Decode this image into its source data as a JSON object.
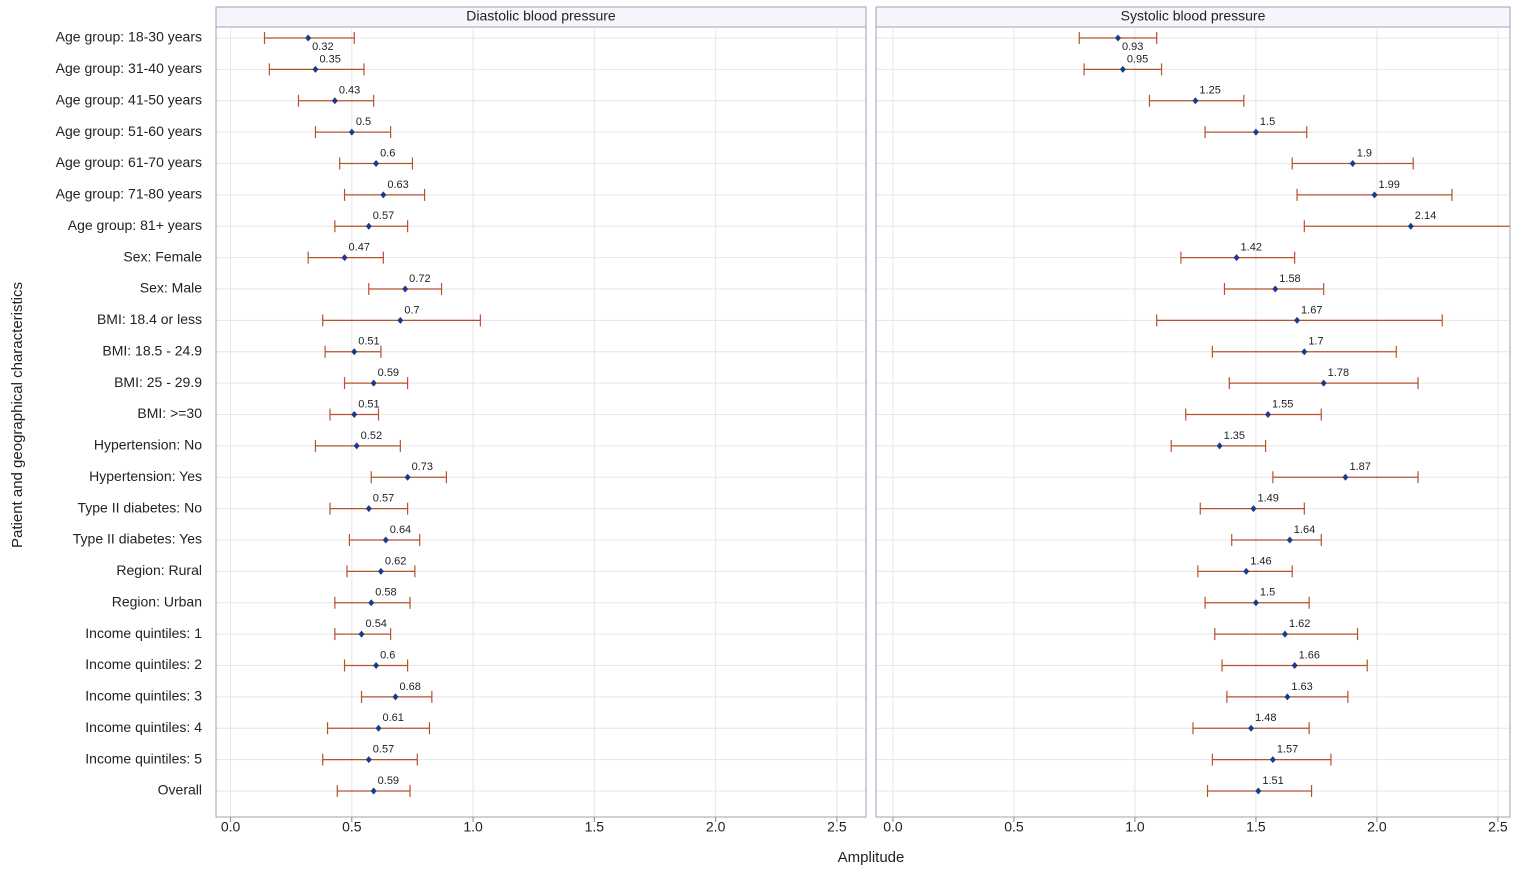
{
  "chart_data": {
    "type": "forest",
    "ylabel": "Patient and geographical characteristics",
    "xlabel": "Amplitude",
    "point_color": "#1a3a8c",
    "ci_color": "#b5532d",
    "grid": true,
    "categories": [
      "Age group: 18-30 years",
      "Age group: 31-40 years",
      "Age group: 41-50 years",
      "Age group: 51-60 years",
      "Age group: 61-70 years",
      "Age group: 71-80 years",
      "Age group: 81+ years",
      "Sex: Female",
      "Sex: Male",
      "BMI: 18.4 or less",
      "BMI: 18.5 - 24.9",
      "BMI: 25 - 29.9",
      "BMI: >=30",
      "Hypertension: No",
      "Hypertension: Yes",
      "Type II diabetes: No",
      "Type II diabetes: Yes",
      "Region: Rural",
      "Region: Urban",
      "Income quintiles: 1",
      "Income quintiles: 2",
      "Income quintiles: 3",
      "Income quintiles: 4",
      "Income quintiles: 5",
      "Overall"
    ],
    "panels": [
      {
        "title": "Diastolic blood pressure",
        "xlim": [
          -0.06,
          2.62
        ],
        "xticks": [
          {
            "value": 0,
            "label": "0.0"
          },
          0.5,
          {
            "value": 1,
            "label": "1.0"
          },
          1.5,
          {
            "value": 2,
            "label": "2.0"
          },
          2.5
        ],
        "values": [
          0.32,
          0.35,
          0.43,
          0.5,
          0.6,
          0.63,
          0.57,
          0.47,
          0.72,
          0.7,
          0.51,
          0.59,
          0.51,
          0.52,
          0.73,
          0.57,
          0.64,
          0.62,
          0.58,
          0.54,
          0.6,
          0.68,
          0.61,
          0.57,
          0.59
        ],
        "lower": [
          0.14,
          0.16,
          0.28,
          0.35,
          0.45,
          0.47,
          0.43,
          0.32,
          0.57,
          0.38,
          0.39,
          0.47,
          0.41,
          0.35,
          0.58,
          0.41,
          0.49,
          0.48,
          0.43,
          0.43,
          0.47,
          0.54,
          0.4,
          0.38,
          0.44
        ],
        "upper": [
          0.51,
          0.55,
          0.59,
          0.66,
          0.75,
          0.8,
          0.73,
          0.63,
          0.87,
          1.03,
          0.62,
          0.73,
          0.61,
          0.7,
          0.89,
          0.73,
          0.78,
          0.76,
          0.74,
          0.66,
          0.73,
          0.83,
          0.82,
          0.77,
          0.74
        ]
      },
      {
        "title": "Systolic blood pressure",
        "xlim": [
          -0.07,
          2.55
        ],
        "xticks": [
          {
            "value": 0,
            "label": "0.0"
          },
          0.5,
          {
            "value": 1,
            "label": "1.0"
          },
          1.5,
          {
            "value": 2,
            "label": "2.0"
          },
          2.5
        ],
        "values": [
          0.93,
          0.95,
          1.25,
          1.5,
          1.9,
          1.99,
          2.14,
          1.42,
          1.58,
          1.67,
          1.7,
          1.78,
          1.55,
          1.35,
          1.87,
          1.49,
          1.64,
          1.46,
          1.5,
          1.62,
          1.66,
          1.63,
          1.48,
          1.57,
          1.51
        ],
        "lower": [
          0.77,
          0.79,
          1.06,
          1.29,
          1.65,
          1.67,
          1.7,
          1.19,
          1.37,
          1.09,
          1.32,
          1.39,
          1.21,
          1.15,
          1.57,
          1.27,
          1.4,
          1.26,
          1.29,
          1.33,
          1.36,
          1.38,
          1.24,
          1.32,
          1.3
        ],
        "upper": [
          1.09,
          1.11,
          1.45,
          1.71,
          2.15,
          2.31,
          2.6,
          1.66,
          1.78,
          2.27,
          2.08,
          2.17,
          1.77,
          1.54,
          2.17,
          1.7,
          1.77,
          1.65,
          1.72,
          1.92,
          1.96,
          1.88,
          1.72,
          1.81,
          1.73
        ]
      }
    ]
  }
}
